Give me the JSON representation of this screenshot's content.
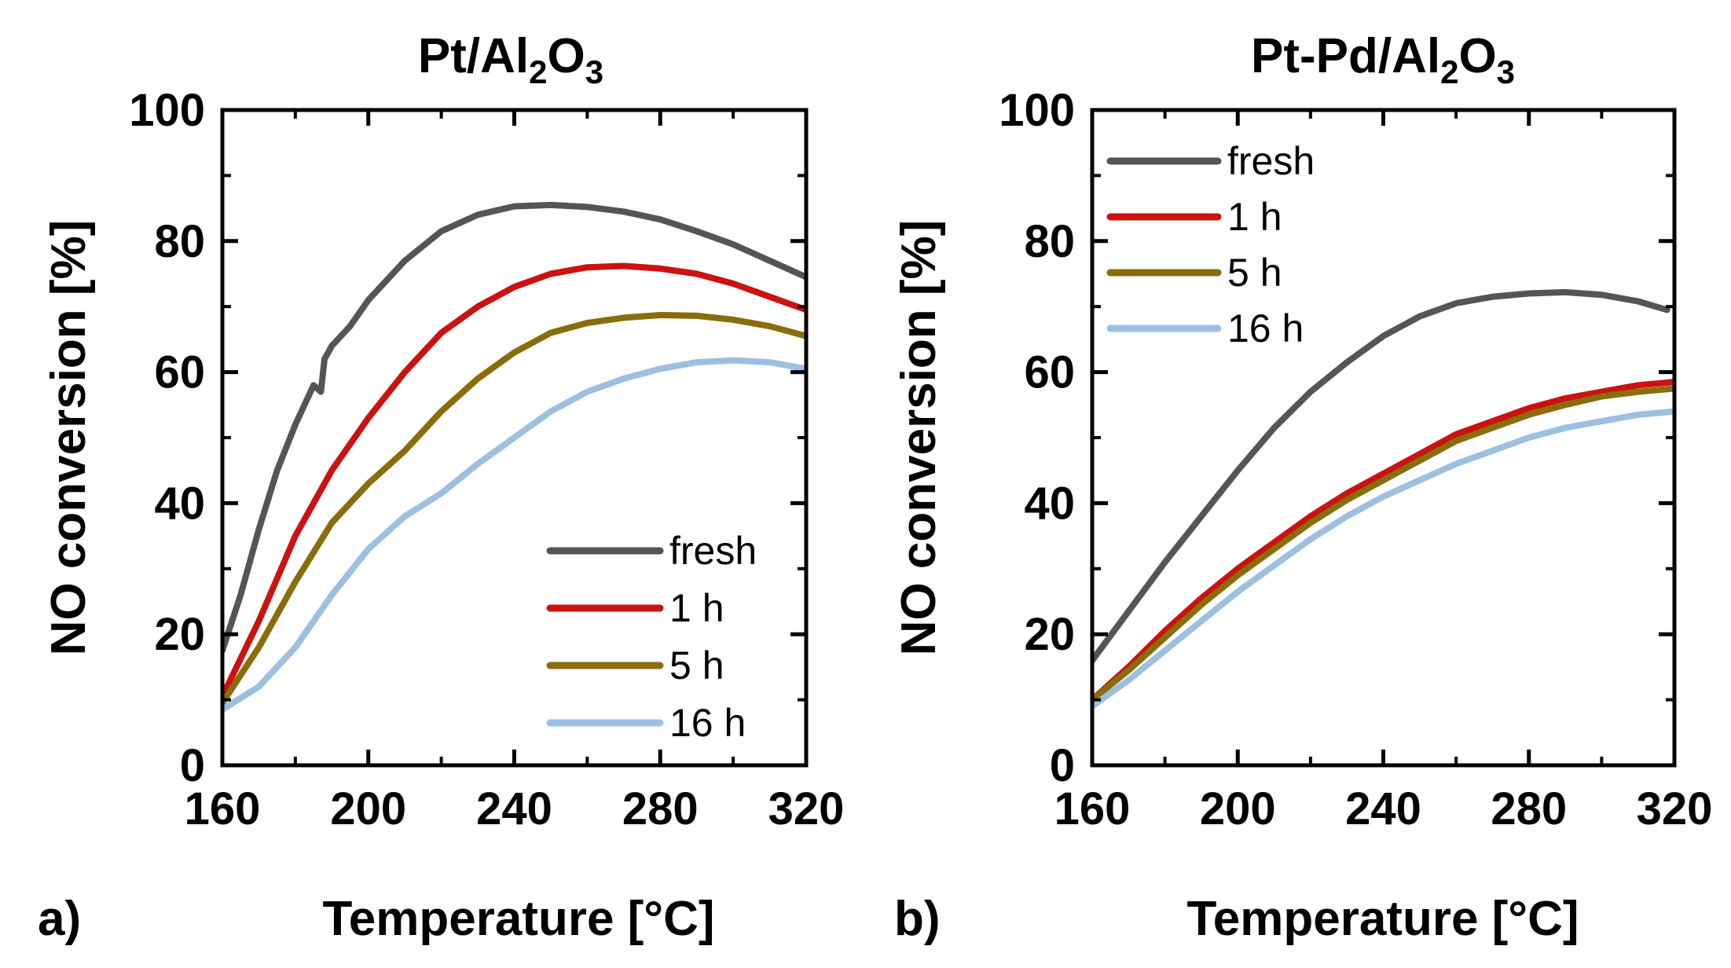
{
  "figure": {
    "panel_tags": [
      "a)",
      "b)"
    ]
  },
  "chart_data": [
    {
      "type": "line",
      "title": "Pt/Al2O3",
      "title_parts": {
        "prefix": "Pt/Al",
        "sub1": "2",
        "mid": "O",
        "sub2": "3"
      },
      "xlabel": "Temperature [°C]",
      "ylabel": "NO conversion [%]",
      "xlim": [
        160,
        320
      ],
      "ylim": [
        0,
        100
      ],
      "xticks": [
        "160",
        "200",
        "240",
        "280",
        "320"
      ],
      "yticks": [
        "0",
        "20",
        "40",
        "60",
        "80",
        "100"
      ],
      "legend_position": "lower-right",
      "grid": false,
      "series": [
        {
          "name": "fresh",
          "color": "#555555",
          "x": [
            160,
            165,
            170,
            175,
            180,
            185,
            187,
            188,
            189,
            190,
            195,
            200,
            210,
            220,
            230,
            240,
            250,
            260,
            270,
            280,
            290,
            300,
            310,
            320
          ],
          "y": [
            17.5,
            26,
            36,
            45,
            52,
            58,
            57,
            62,
            63,
            64,
            67,
            71,
            77,
            81.5,
            84,
            85.3,
            85.5,
            85.2,
            84.5,
            83.3,
            81.5,
            79.5,
            77,
            74.5
          ]
        },
        {
          "name": "1 h",
          "color": "#cc1111",
          "x": [
            160,
            170,
            180,
            190,
            200,
            210,
            220,
            230,
            240,
            250,
            260,
            270,
            280,
            290,
            300,
            310,
            320
          ],
          "y": [
            10.5,
            22,
            35,
            45,
            53,
            60,
            66,
            70,
            73,
            75,
            76,
            76.2,
            75.8,
            75,
            73.5,
            71.5,
            69.5
          ]
        },
        {
          "name": "5 h",
          "color": "#8a6d0b",
          "x": [
            160,
            170,
            180,
            190,
            200,
            210,
            220,
            230,
            240,
            250,
            260,
            270,
            280,
            290,
            300,
            310,
            320
          ],
          "y": [
            9.5,
            18,
            28,
            37,
            43,
            48,
            54,
            59,
            63,
            66,
            67.5,
            68.3,
            68.7,
            68.6,
            68,
            67,
            65.5
          ]
        },
        {
          "name": "16 h",
          "color": "#9dbfe0",
          "x": [
            160,
            170,
            180,
            190,
            200,
            210,
            220,
            230,
            240,
            250,
            260,
            270,
            280,
            290,
            300,
            310,
            320
          ],
          "y": [
            8.5,
            12,
            18,
            26,
            33,
            38,
            41.5,
            46,
            50,
            54,
            57,
            59,
            60.5,
            61.5,
            61.8,
            61.5,
            60.5
          ]
        }
      ]
    },
    {
      "type": "line",
      "title": "Pt-Pd/Al2O3",
      "title_parts": {
        "prefix": "Pt-Pd/Al",
        "sub1": "2",
        "mid": "O",
        "sub2": "3"
      },
      "xlabel": "Temperature [°C]",
      "ylabel": "NO conversion [%]",
      "xlim": [
        160,
        320
      ],
      "ylim": [
        0,
        100
      ],
      "xticks": [
        "160",
        "200",
        "240",
        "280",
        "320"
      ],
      "yticks": [
        "0",
        "20",
        "40",
        "60",
        "80",
        "100"
      ],
      "legend_position": "upper-left",
      "grid": false,
      "series": [
        {
          "name": "fresh",
          "color": "#555555",
          "x": [
            160,
            170,
            180,
            190,
            200,
            210,
            220,
            230,
            240,
            250,
            260,
            270,
            280,
            290,
            300,
            310,
            318
          ],
          "y": [
            16,
            23.5,
            31,
            38,
            45,
            51.5,
            57,
            61.5,
            65.5,
            68.5,
            70.5,
            71.5,
            72,
            72.2,
            71.8,
            70.8,
            69.5
          ]
        },
        {
          "name": "1 h",
          "color": "#cc1111",
          "x": [
            160,
            170,
            180,
            190,
            200,
            210,
            220,
            230,
            240,
            250,
            260,
            270,
            280,
            290,
            300,
            310,
            320
          ],
          "y": [
            10,
            15,
            20.5,
            25.5,
            30,
            34,
            38,
            41.5,
            44.5,
            47.5,
            50.5,
            52.5,
            54.5,
            56,
            57,
            58,
            58.5
          ]
        },
        {
          "name": "5 h",
          "color": "#8a6d0b",
          "x": [
            160,
            170,
            180,
            190,
            200,
            210,
            220,
            230,
            240,
            250,
            260,
            270,
            280,
            290,
            300,
            310,
            320
          ],
          "y": [
            10,
            14.5,
            19.5,
            24.5,
            29,
            33,
            37,
            40.5,
            43.5,
            46.5,
            49.5,
            51.5,
            53.5,
            55,
            56.3,
            57,
            57.5
          ]
        },
        {
          "name": "16 h",
          "color": "#9dbfe0",
          "x": [
            160,
            170,
            180,
            190,
            200,
            210,
            220,
            230,
            240,
            250,
            260,
            270,
            280,
            290,
            300,
            310,
            320
          ],
          "y": [
            9,
            13,
            17.5,
            22,
            26.5,
            30.5,
            34.5,
            38,
            41,
            43.5,
            46,
            48,
            50,
            51.5,
            52.5,
            53.5,
            54
          ]
        }
      ]
    }
  ]
}
